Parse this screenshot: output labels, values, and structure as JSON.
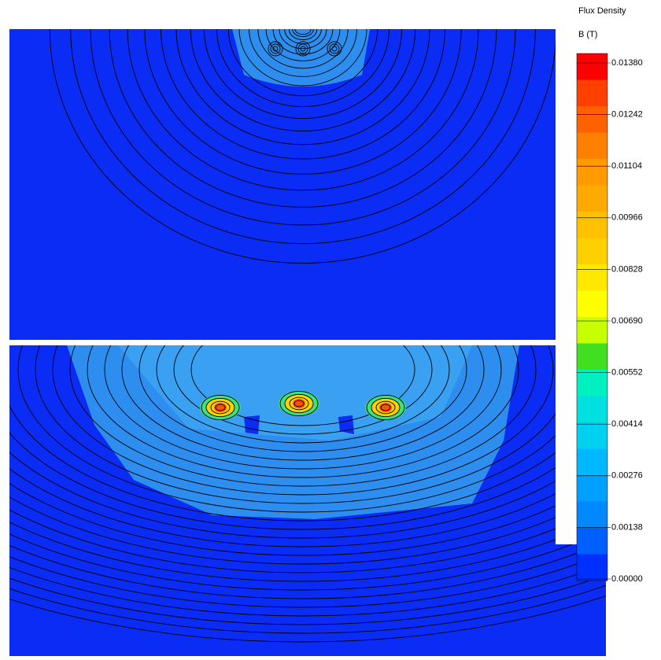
{
  "legend": {
    "title": "Flux Density",
    "unit": "B (T)",
    "ticks": [
      "0.01380",
      "0.01242",
      "0.01104",
      "0.00966",
      "0.00828",
      "0.00690",
      "0.00552",
      "0.00414",
      "0.00276",
      "0.00138",
      "0.00000"
    ]
  }
}
